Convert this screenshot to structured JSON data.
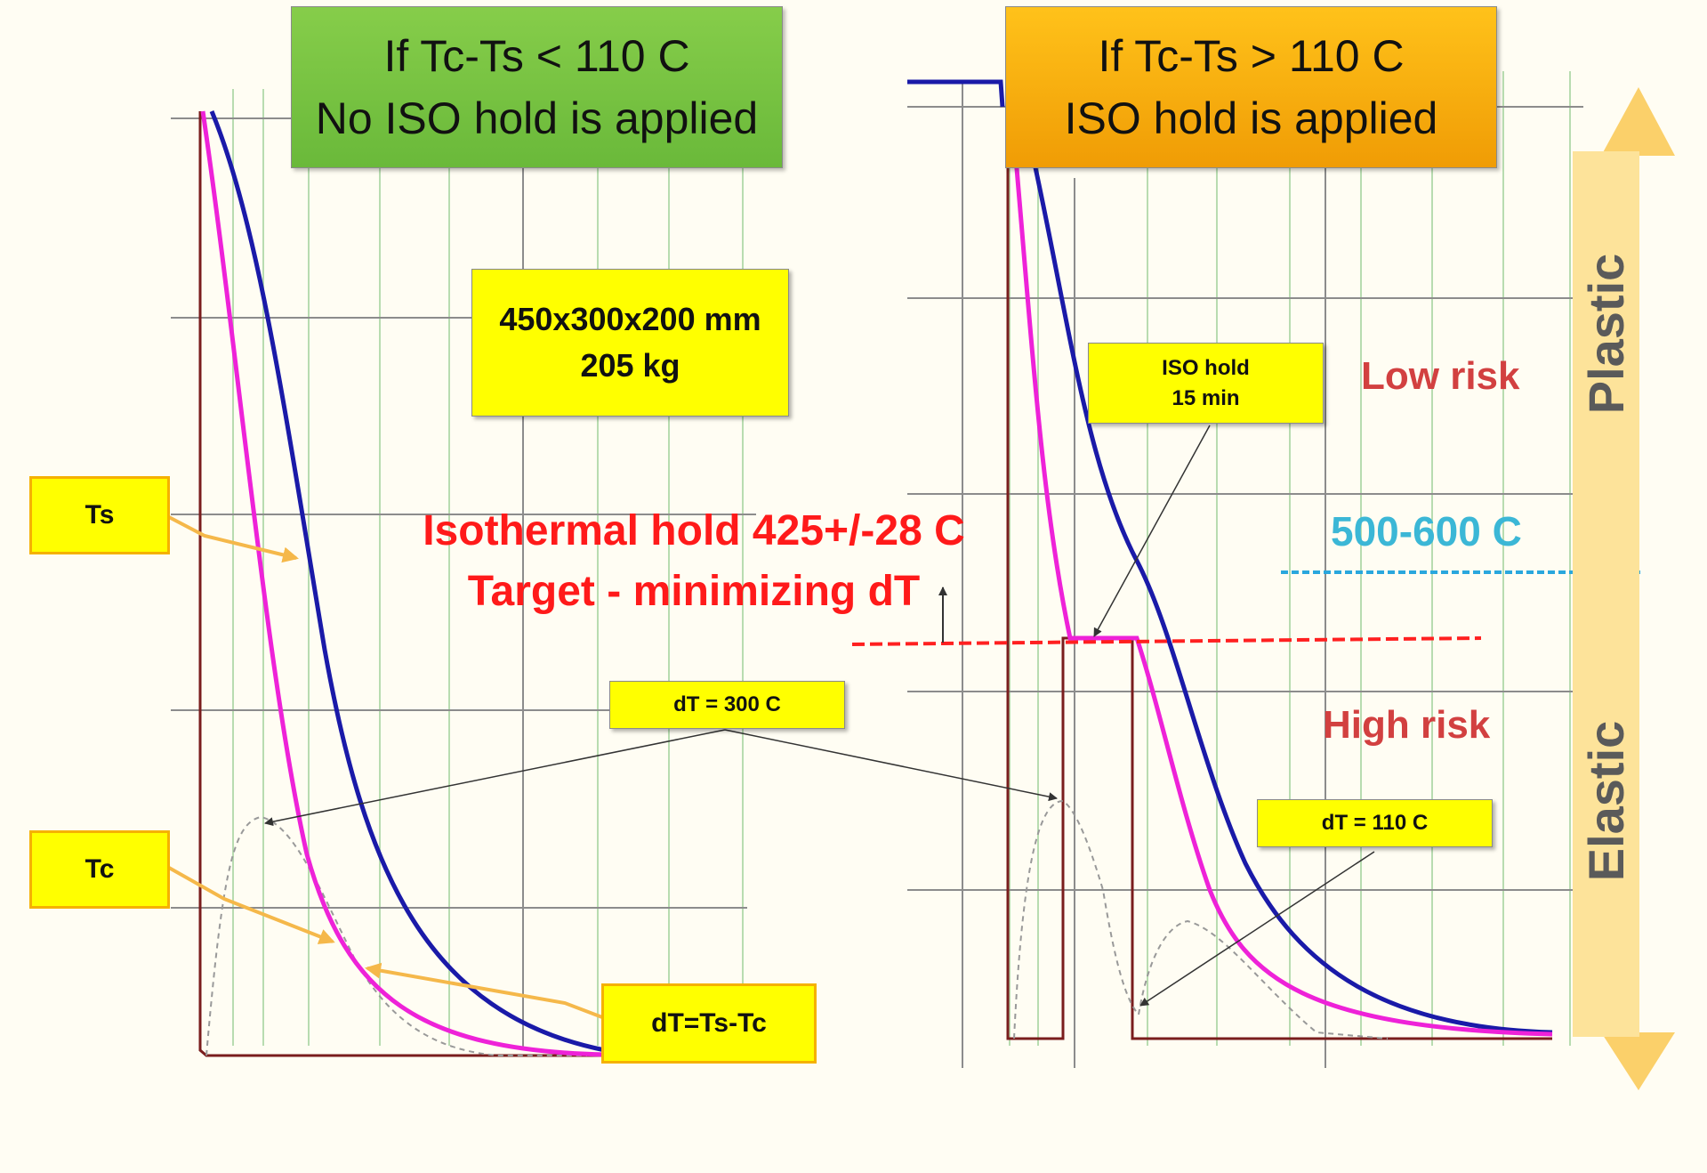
{
  "left_panel": {
    "title_line1": "If Tc-Ts < 110 C",
    "title_line2": "No ISO hold is applied",
    "dimensions_line1": "450x300x200 mm",
    "dimensions_line2": "205 kg",
    "ts_label": "Ts",
    "tc_label": "Tc",
    "dt_definition": "dT=Ts-Tc",
    "dt_value_label": "dT = 300 C"
  },
  "right_panel": {
    "title_line1": "If Tc-Ts > 110 C",
    "title_line2": "ISO hold is applied",
    "iso_hold_line1": "ISO hold",
    "iso_hold_line2": "15 min",
    "dt_value_label": "dT = 110 C",
    "low_risk": "Low risk",
    "high_risk": "High risk",
    "temp_range": "500-600 C",
    "plastic": "Plastic",
    "elastic": "Elastic"
  },
  "center": {
    "line1": "Isothermal hold 425+/-28 C",
    "line2": "Target - minimizing dT"
  },
  "colors": {
    "ts_curve": "#1a1aa8",
    "tc_curve": "#ee22d8",
    "dt_curve": "#999999",
    "quench_step": "#7a1d1d",
    "hold_line": "#ff2020",
    "range_line": "#2aa7dd",
    "arrow": "#f5b84a",
    "grid_major": "#8c8c8c",
    "grid_minor": "#b8dcb0"
  }
}
